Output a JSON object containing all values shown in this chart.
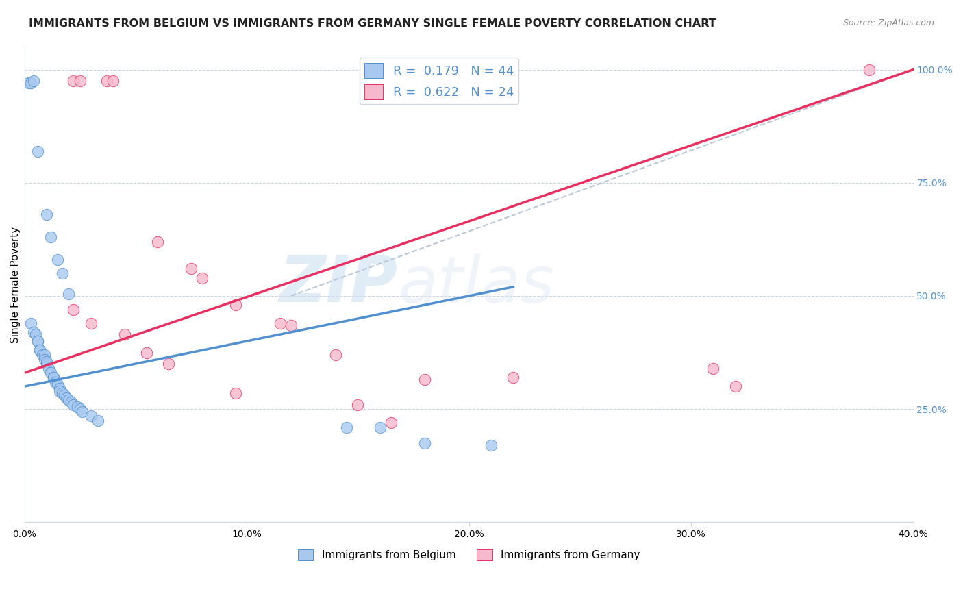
{
  "title": "IMMIGRANTS FROM BELGIUM VS IMMIGRANTS FROM GERMANY SINGLE FEMALE POVERTY CORRELATION CHART",
  "source": "Source: ZipAtlas.com",
  "ylabel": "Single Female Poverty",
  "legend_label_bottom": [
    "Immigrants from Belgium",
    "Immigrants from Germany"
  ],
  "watermark_part1": "ZIP",
  "watermark_part2": "atlas",
  "r_belgium": 0.179,
  "n_belgium": 44,
  "r_germany": 0.622,
  "n_germany": 24,
  "xlim": [
    0.0,
    0.4
  ],
  "ylim": [
    0.0,
    1.05
  ],
  "xtick_labels": [
    "0.0%",
    "10.0%",
    "20.0%",
    "30.0%",
    "40.0%"
  ],
  "xtick_values": [
    0.0,
    0.1,
    0.2,
    0.3,
    0.4
  ],
  "ytick_labels": [
    "25.0%",
    "50.0%",
    "75.0%",
    "100.0%"
  ],
  "ytick_values": [
    0.25,
    0.5,
    0.75,
    1.0
  ],
  "color_belgium": "#a8c8f0",
  "color_germany": "#f5b8cc",
  "line_color_belgium": "#5090d0",
  "line_color_germany": "#e83060",
  "line_color_dashed": "#b8c8d8",
  "belgium_x": [
    0.002,
    0.003,
    0.004,
    0.006,
    0.01,
    0.012,
    0.015,
    0.017,
    0.02,
    0.003,
    0.004,
    0.005,
    0.006,
    0.006,
    0.007,
    0.007,
    0.008,
    0.009,
    0.009,
    0.01,
    0.01,
    0.011,
    0.012,
    0.013,
    0.013,
    0.014,
    0.015,
    0.016,
    0.016,
    0.017,
    0.018,
    0.019,
    0.02,
    0.021,
    0.022,
    0.024,
    0.025,
    0.026,
    0.03,
    0.033,
    0.145,
    0.16,
    0.18,
    0.21
  ],
  "belgium_y": [
    0.97,
    0.97,
    0.975,
    0.82,
    0.68,
    0.63,
    0.58,
    0.55,
    0.505,
    0.44,
    0.42,
    0.415,
    0.4,
    0.4,
    0.38,
    0.38,
    0.37,
    0.37,
    0.36,
    0.35,
    0.355,
    0.34,
    0.33,
    0.32,
    0.32,
    0.31,
    0.305,
    0.295,
    0.29,
    0.285,
    0.28,
    0.275,
    0.27,
    0.265,
    0.26,
    0.255,
    0.25,
    0.245,
    0.235,
    0.225,
    0.21,
    0.21,
    0.175,
    0.17
  ],
  "germany_x": [
    0.022,
    0.025,
    0.037,
    0.04,
    0.06,
    0.075,
    0.08,
    0.095,
    0.115,
    0.12,
    0.14,
    0.18,
    0.22,
    0.31,
    0.32,
    0.38,
    0.022,
    0.03,
    0.045,
    0.055,
    0.065,
    0.095,
    0.15,
    0.165
  ],
  "germany_y": [
    0.975,
    0.975,
    0.975,
    0.975,
    0.62,
    0.56,
    0.54,
    0.48,
    0.44,
    0.435,
    0.37,
    0.315,
    0.32,
    0.34,
    0.3,
    1.0,
    0.47,
    0.44,
    0.415,
    0.375,
    0.35,
    0.285,
    0.26,
    0.22
  ],
  "belgium_line_x0": 0.0,
  "belgium_line_y0": 0.3,
  "belgium_line_x1": 0.22,
  "belgium_line_y1": 0.52,
  "germany_line_x0": 0.0,
  "germany_line_y0": 0.33,
  "germany_line_x1": 0.4,
  "germany_line_y1": 1.0,
  "dash_line_x0": 0.12,
  "dash_line_y0": 0.5,
  "dash_line_x1": 0.4,
  "dash_line_y1": 1.0,
  "title_fontsize": 11.5,
  "axis_label_fontsize": 11,
  "tick_fontsize": 10,
  "legend_fontsize": 13
}
